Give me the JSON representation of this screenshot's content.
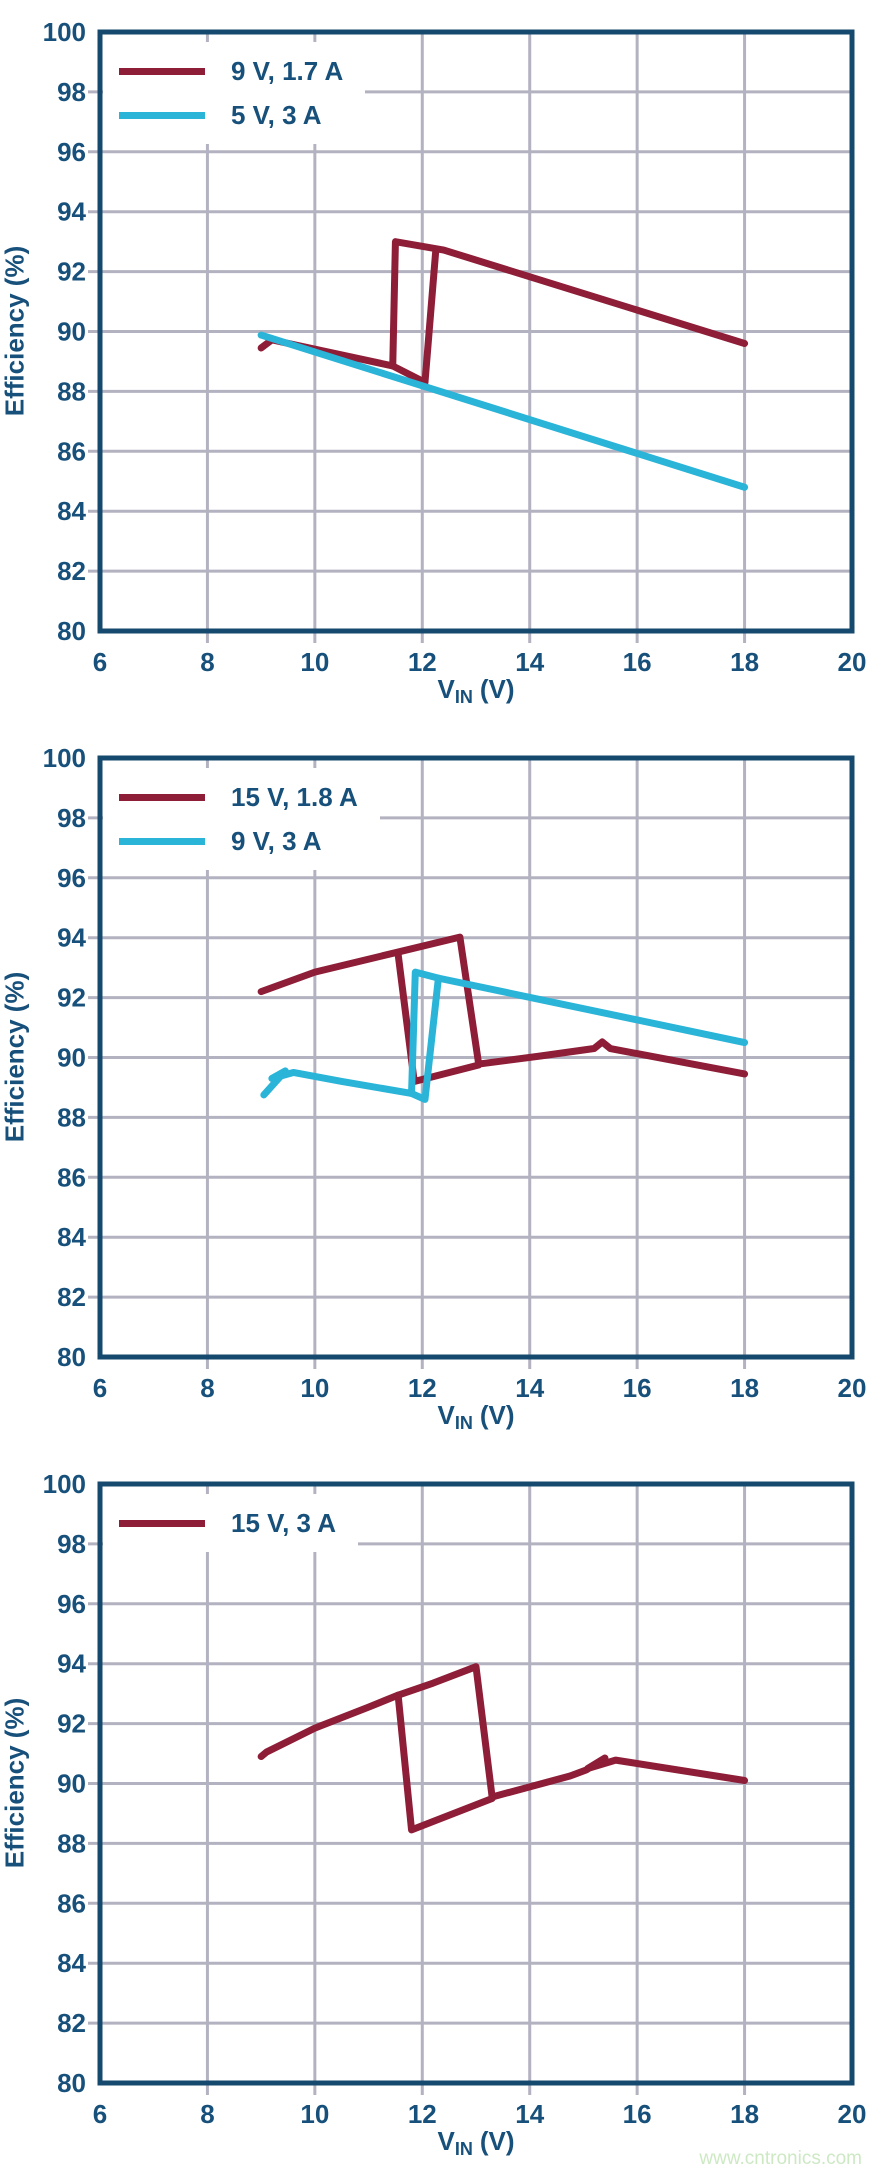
{
  "colors": {
    "navy": "#17507a",
    "border": "#15496e",
    "grid": "#b3b2c1",
    "red": "#8e1d37",
    "cyan": "#29b4d8",
    "watermark_green": "#cde9c4"
  },
  "watermark": {
    "text": "www.cntronics.com"
  },
  "chart_data": [
    {
      "type": "line",
      "title": "",
      "xlabel": "VIN (V)",
      "xlabel_parts": {
        "main": "V",
        "sub": "IN",
        "unit": "(V)"
      },
      "ylabel": "Efficiency (%)",
      "xlim": [
        6,
        20
      ],
      "ylim": [
        80,
        100
      ],
      "xticks": [
        6,
        8,
        10,
        12,
        14,
        16,
        18,
        20
      ],
      "yticks": [
        80,
        82,
        84,
        86,
        88,
        90,
        92,
        94,
        96,
        98,
        100
      ],
      "grid": true,
      "legend_position": "top-left",
      "legend": [
        {
          "label": "9 V, 1.7 A",
          "color": "#8e1d37"
        },
        {
          "label": "5 V, 3 A",
          "color": "#29b4d8"
        }
      ],
      "series": [
        {
          "name": "9 V, 1.7 A",
          "color": "#8e1d37",
          "segments": [
            [
              [
                9,
                89.45
              ],
              [
                9.2,
                89.72
              ],
              [
                11.45,
                88.85
              ],
              [
                12.05,
                88.3
              ],
              [
                12.25,
                92.68
              ]
            ],
            [
              [
                11.45,
                88.85
              ],
              [
                11.5,
                93.0
              ],
              [
                12.4,
                92.72
              ],
              [
                18,
                89.6
              ]
            ]
          ]
        },
        {
          "name": "5 V, 3 A",
          "color": "#29b4d8",
          "segments": [
            [
              [
                9,
                89.88
              ],
              [
                18,
                84.8
              ]
            ]
          ]
        }
      ]
    },
    {
      "type": "line",
      "title": "",
      "xlabel": "VIN (V)",
      "xlabel_parts": {
        "main": "V",
        "sub": "IN",
        "unit": "(V)"
      },
      "ylabel": "Efficiency (%)",
      "xlim": [
        6,
        20
      ],
      "ylim": [
        80,
        100
      ],
      "xticks": [
        6,
        8,
        10,
        12,
        14,
        16,
        18,
        20
      ],
      "yticks": [
        80,
        82,
        84,
        86,
        88,
        90,
        92,
        94,
        96,
        98,
        100
      ],
      "grid": true,
      "legend_position": "top-left",
      "legend": [
        {
          "label": "15 V, 1.8 A",
          "color": "#8e1d37"
        },
        {
          "label": "9 V, 3 A",
          "color": "#29b4d8"
        }
      ],
      "series": [
        {
          "name": "15 V, 1.8 A",
          "color": "#8e1d37",
          "segments": [
            [
              [
                9,
                92.2
              ],
              [
                10,
                92.85
              ],
              [
                11.5,
                93.5
              ],
              [
                12.7,
                94.02
              ],
              [
                13.05,
                89.78
              ],
              [
                14.2,
                90.05
              ],
              [
                15.2,
                90.3
              ],
              [
                15.35,
                90.52
              ],
              [
                15.5,
                90.3
              ],
              [
                18,
                89.45
              ]
            ],
            [
              [
                11.55,
                93.45
              ],
              [
                11.85,
                89.2
              ],
              [
                13.05,
                89.75
              ]
            ]
          ]
        },
        {
          "name": "9 V, 3 A",
          "color": "#29b4d8",
          "segments": [
            [
              [
                9.05,
                88.75
              ],
              [
                9.45,
                89.55
              ],
              [
                9.2,
                89.3
              ],
              [
                9.6,
                89.5
              ],
              [
                10.5,
                89.2
              ],
              [
                11.8,
                88.8
              ],
              [
                11.87,
                92.85
              ],
              [
                12.3,
                92.65
              ],
              [
                18,
                90.5
              ]
            ],
            [
              [
                12.3,
                92.65
              ],
              [
                12.05,
                88.6
              ],
              [
                11.8,
                88.8
              ]
            ]
          ]
        }
      ]
    },
    {
      "type": "line",
      "title": "",
      "xlabel": "VIN (V)",
      "xlabel_parts": {
        "main": "V",
        "sub": "IN",
        "unit": "(V)"
      },
      "ylabel": "Efficiency (%)",
      "xlim": [
        6,
        20
      ],
      "ylim": [
        80,
        100
      ],
      "xticks": [
        6,
        8,
        10,
        12,
        14,
        16,
        18,
        20
      ],
      "yticks": [
        80,
        82,
        84,
        86,
        88,
        90,
        92,
        94,
        96,
        98,
        100
      ],
      "grid": true,
      "legend_position": "top-left",
      "legend": [
        {
          "label": "15 V, 3 A",
          "color": "#8e1d37"
        }
      ],
      "series": [
        {
          "name": "15 V, 3 A",
          "color": "#8e1d37",
          "segments": [
            [
              [
                9,
                90.9
              ],
              [
                9.1,
                91.05
              ],
              [
                10,
                91.85
              ],
              [
                11,
                92.55
              ],
              [
                11.55,
                92.95
              ],
              [
                12.2,
                93.35
              ],
              [
                13,
                93.9
              ],
              [
                13.3,
                89.55
              ],
              [
                14.75,
                90.25
              ],
              [
                15.05,
                90.45
              ],
              [
                15.4,
                90.85
              ],
              [
                15.08,
                90.5
              ],
              [
                15.6,
                90.78
              ],
              [
                18,
                90.1
              ]
            ],
            [
              [
                11.55,
                92.95
              ],
              [
                11.8,
                88.45
              ],
              [
                13.3,
                89.5
              ]
            ]
          ]
        }
      ]
    }
  ]
}
